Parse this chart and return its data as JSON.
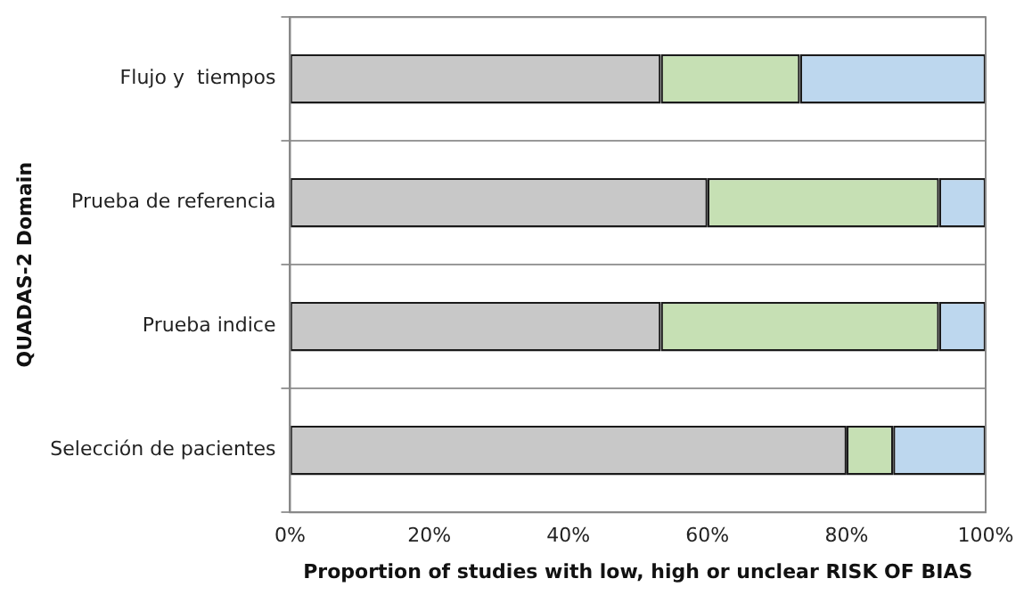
{
  "chart_data": {
    "type": "bar",
    "orientation": "horizontal",
    "stacked": true,
    "xlabel": "Proportion of studies with low, high or unclear RISK OF BIAS",
    "ylabel": "QUADAS-2 Domain",
    "categories": [
      "Flujo y  tiempos",
      "Prueba de referencia",
      "Prueba indice",
      "Selección de pacientes"
    ],
    "series": [
      {
        "color": "#c8c8c8",
        "values": [
          53.3,
          60,
          53.3,
          80
        ]
      },
      {
        "color": "#c6e0b4",
        "values": [
          20,
          33.3,
          40,
          6.7
        ]
      },
      {
        "color": "#bdd7ee",
        "values": [
          26.7,
          6.7,
          6.7,
          13.3
        ]
      }
    ],
    "xlim": [
      0,
      100
    ],
    "xticks": [
      {
        "value": 0,
        "label": "0%"
      },
      {
        "value": 20,
        "label": "20%"
      },
      {
        "value": 40,
        "label": "40%"
      },
      {
        "value": 60,
        "label": "60%"
      },
      {
        "value": 80,
        "label": "80%"
      },
      {
        "value": 100,
        "label": "100%"
      }
    ],
    "grid": "y",
    "legend": false
  }
}
